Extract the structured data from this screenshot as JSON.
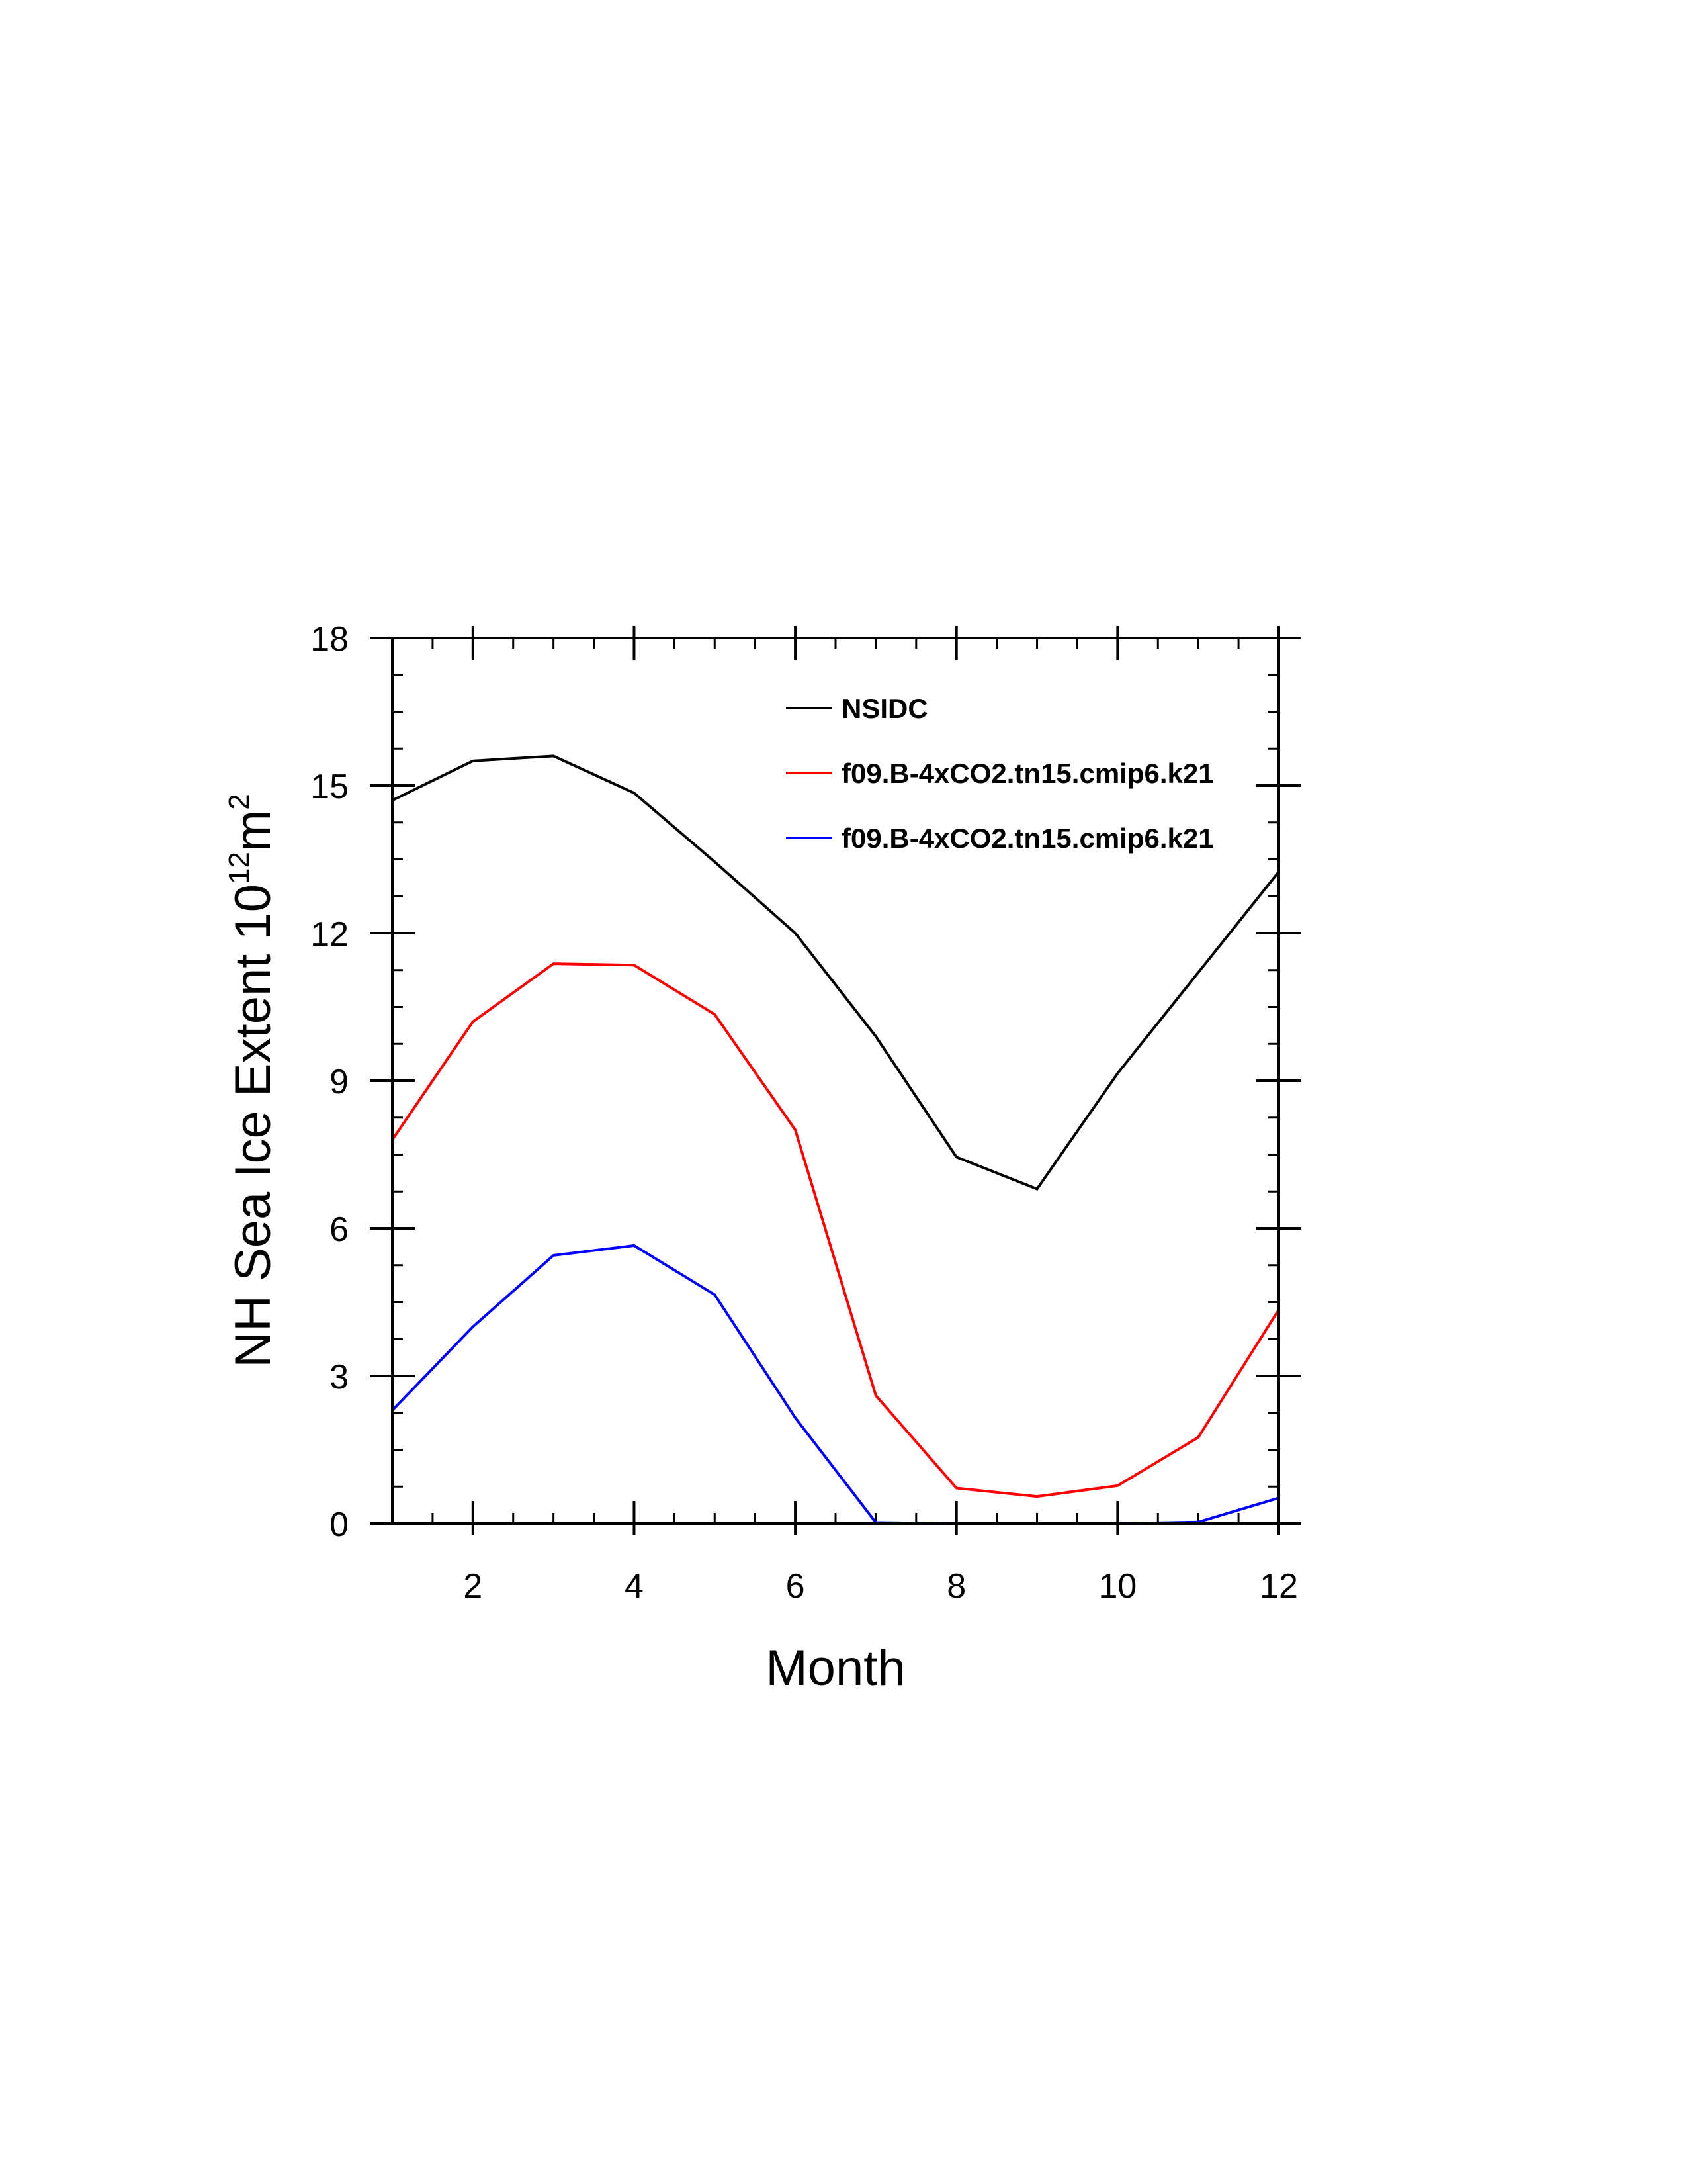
{
  "chart_data": {
    "type": "line",
    "title": "",
    "xlabel": "Month",
    "ylabel": "NH Sea Ice Extent 10",
    "ylabel_exponent": "12",
    "ylabel_unit": "m",
    "ylabel_unit_exponent": "2",
    "xlim": [
      1,
      12
    ],
    "ylim": [
      0,
      18
    ],
    "xticks": [
      2,
      4,
      6,
      8,
      10,
      12
    ],
    "yticks": [
      0,
      3,
      6,
      9,
      12,
      15,
      18
    ],
    "grid": false,
    "legend_placement": "top-right",
    "x": [
      1,
      2,
      3,
      4,
      5,
      6,
      7,
      8,
      9,
      10,
      11,
      12
    ],
    "series": [
      {
        "name": "NSIDC",
        "color": "#000000",
        "values": [
          14.7,
          15.5,
          15.6,
          14.85,
          13.45,
          12.0,
          9.9,
          7.45,
          6.8,
          9.15,
          11.2,
          13.25
        ]
      },
      {
        "name": "f09.B-4xCO2.tn15.cmip6.k21",
        "color": "#ff0000",
        "values": [
          7.8,
          10.2,
          11.38,
          11.35,
          10.35,
          8.0,
          2.6,
          0.72,
          0.55,
          0.77,
          1.75,
          4.35
        ]
      },
      {
        "name": "f09.B-4xCO2.tn15.cmip6.k21",
        "color": "#0000ff",
        "values": [
          2.3,
          4.0,
          5.45,
          5.65,
          4.65,
          2.15,
          0.02,
          0.0,
          0.0,
          0.0,
          0.03,
          0.52
        ]
      }
    ]
  }
}
